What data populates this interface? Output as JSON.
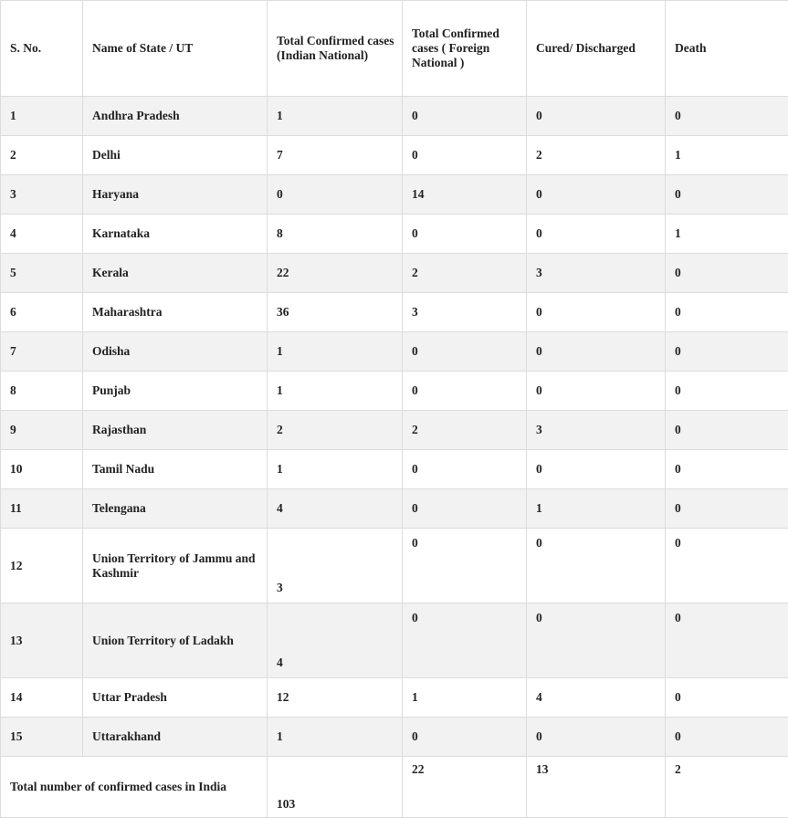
{
  "table": {
    "header": [
      "S. No.",
      "Name of State / UT",
      "Total Confirmed cases (Indian National)",
      "Total Confirmed cases ( Foreign National )",
      "Cured/ Discharged",
      "Death"
    ],
    "rows": [
      [
        1,
        "Andhra Pradesh",
        1,
        0,
        0,
        0
      ],
      [
        2,
        "Delhi",
        7,
        0,
        2,
        1
      ],
      [
        3,
        "Haryana",
        0,
        14,
        0,
        0
      ],
      [
        4,
        "Karnataka",
        8,
        0,
        0,
        1
      ],
      [
        5,
        "Kerala",
        22,
        2,
        3,
        0
      ],
      [
        6,
        "Maharashtra",
        36,
        3,
        0,
        0
      ],
      [
        7,
        "Odisha",
        1,
        0,
        0,
        0
      ],
      [
        8,
        "Punjab",
        1,
        0,
        0,
        0
      ],
      [
        9,
        "Rajasthan",
        2,
        2,
        3,
        0
      ],
      [
        10,
        "Tamil Nadu",
        1,
        0,
        0,
        0
      ],
      [
        11,
        "Telengana",
        4,
        0,
        1,
        0
      ],
      [
        12,
        "Union Territory of Jammu and Kashmir",
        3,
        0,
        0,
        0
      ],
      [
        13,
        "Union Territory of Ladakh",
        4,
        0,
        0,
        0
      ],
      [
        14,
        "Uttar Pradesh",
        12,
        1,
        4,
        0
      ],
      [
        15,
        "Uttarakhand",
        1,
        0,
        0,
        0
      ]
    ],
    "total": [
      "Total number of confirmed cases in India",
      103,
      22,
      13,
      2
    ]
  }
}
